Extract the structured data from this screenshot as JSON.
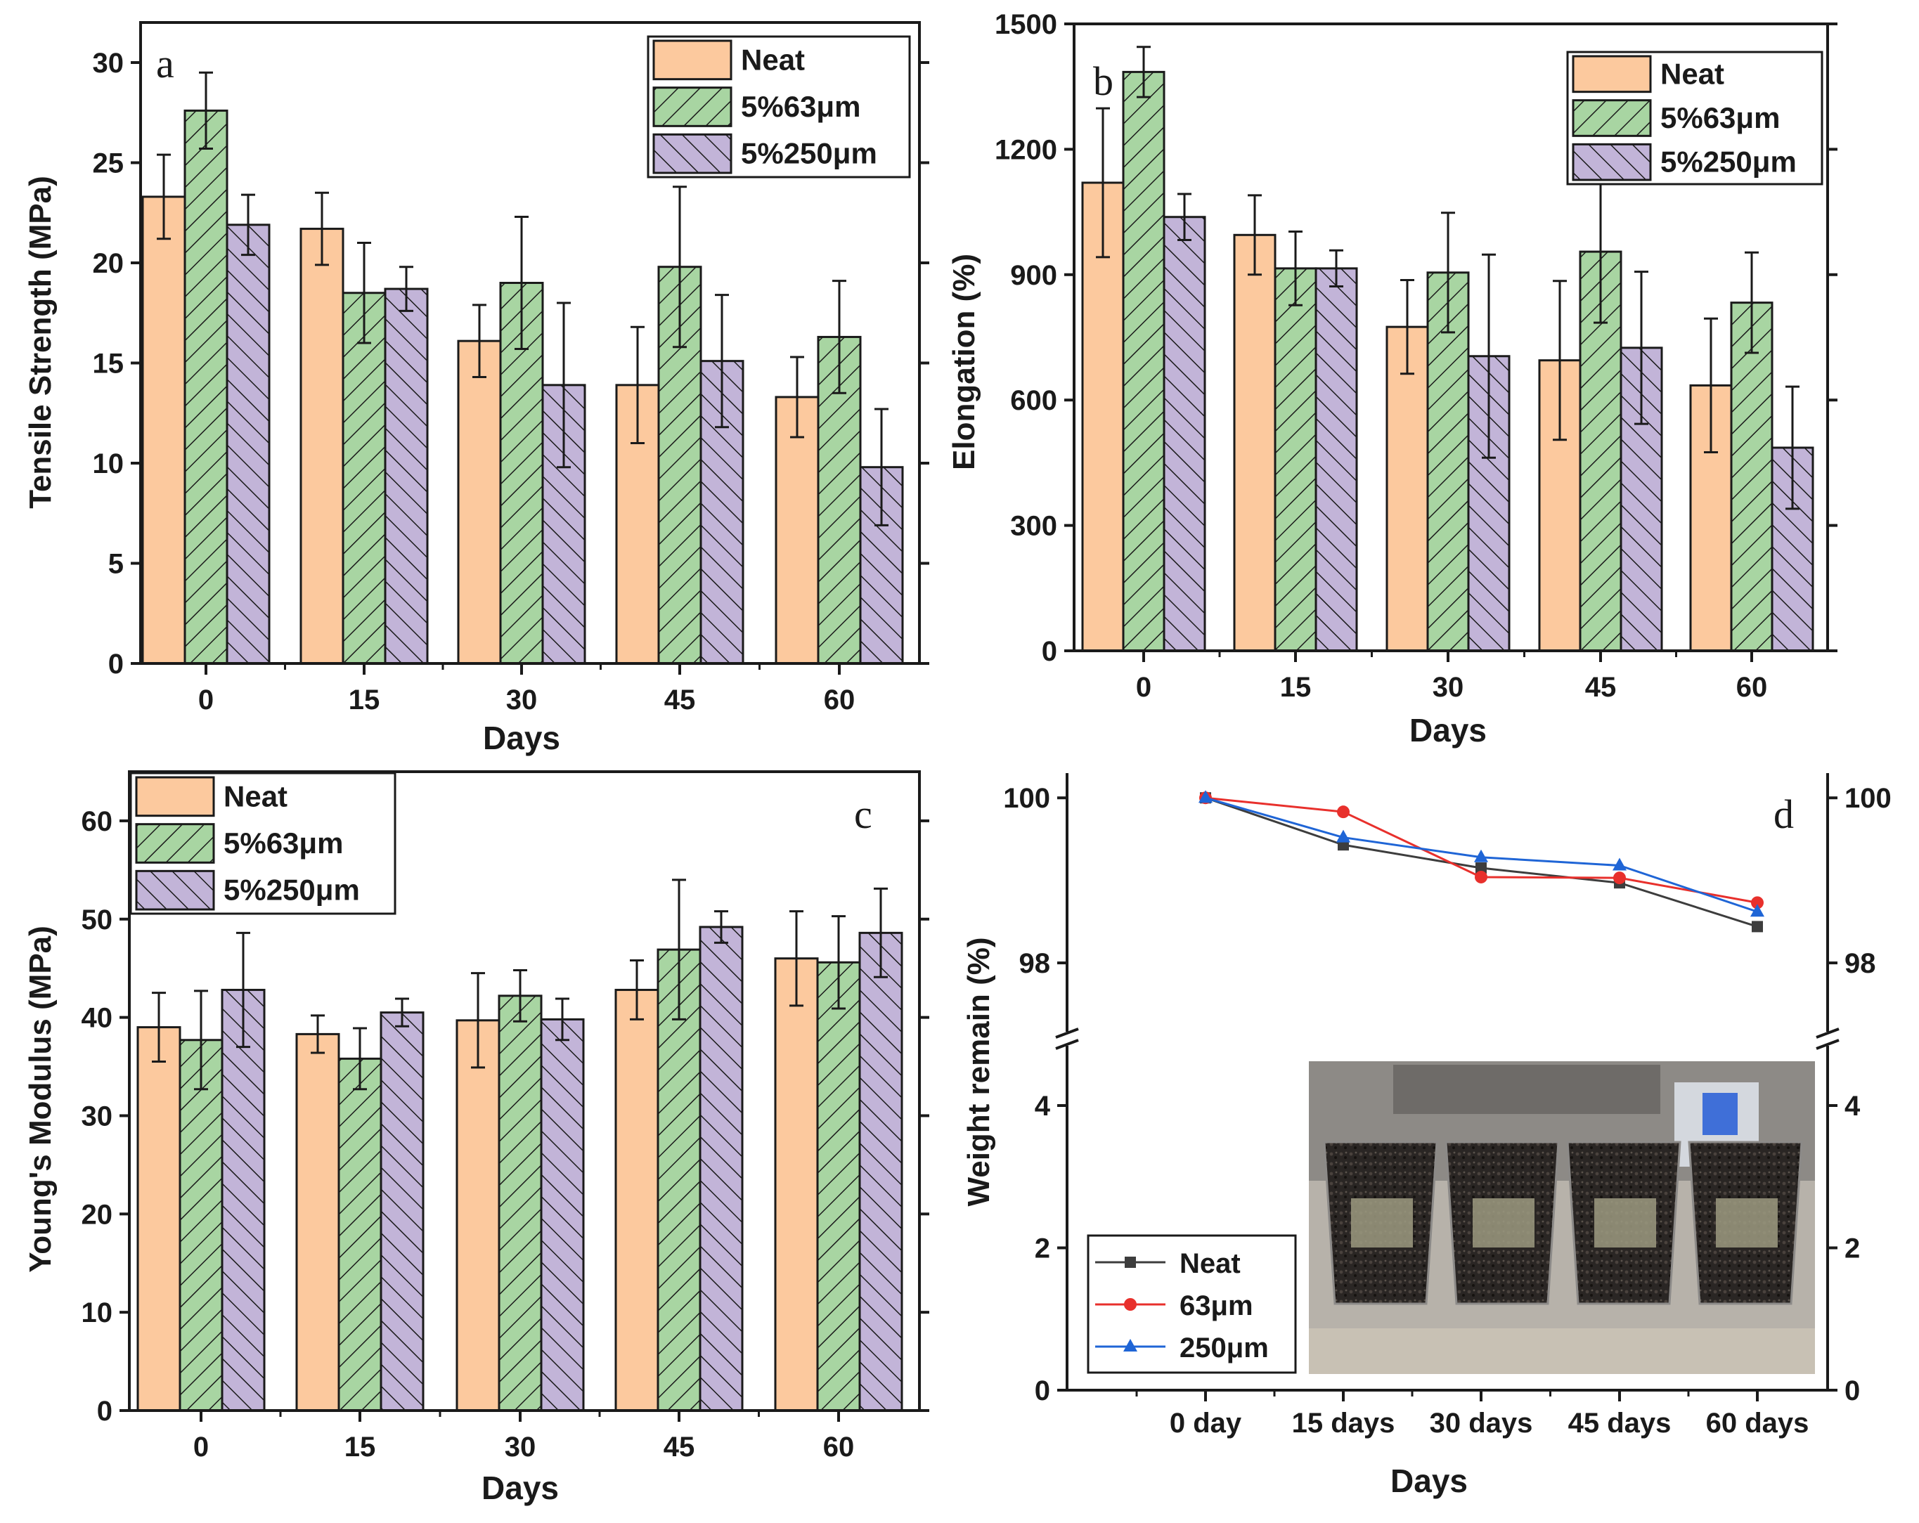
{
  "colors": {
    "neat": "#fcc99e",
    "g63": "#a8d5a2",
    "g250": "#c2b4d8",
    "axis": "#1a1a1a",
    "line_neat": "#3d3d3d",
    "line_63": "#e8302c",
    "line_250": "#1f65d6"
  },
  "chart_data": [
    {
      "id": "a",
      "type": "bar",
      "panel_label": "a",
      "xlabel": "Days",
      "ylabel": "Tensile Strength (MPa)",
      "ylim": [
        0,
        32
      ],
      "yticks": [
        0,
        5,
        10,
        15,
        20,
        25,
        30
      ],
      "categories": [
        "0",
        "15",
        "30",
        "45",
        "60"
      ],
      "legend_position": "top-right",
      "series": [
        {
          "name": "Neat",
          "values": [
            23.3,
            21.7,
            16.1,
            13.9,
            13.3
          ],
          "errors": [
            2.1,
            1.8,
            1.8,
            2.9,
            2.0
          ]
        },
        {
          "name": "5%63μm",
          "values": [
            27.6,
            18.5,
            19.0,
            19.8,
            16.3
          ],
          "errors": [
            1.9,
            2.5,
            3.3,
            4.0,
            2.8
          ]
        },
        {
          "name": "5%250μm",
          "values": [
            21.9,
            18.7,
            13.9,
            15.1,
            9.8
          ],
          "errors": [
            1.5,
            1.1,
            4.1,
            3.3,
            2.9
          ]
        }
      ]
    },
    {
      "id": "b",
      "type": "bar",
      "panel_label": "b",
      "xlabel": "Days",
      "ylabel": "Elongation (%)",
      "ylim": [
        0,
        1500
      ],
      "yticks": [
        0,
        300,
        600,
        900,
        1200,
        1500
      ],
      "categories": [
        "0",
        "15",
        "30",
        "45",
        "60"
      ],
      "legend_position": "top-right",
      "series": [
        {
          "name": "Neat",
          "values": [
            1120,
            995,
            775,
            695,
            635
          ],
          "errors": [
            178,
            95,
            112,
            190,
            160
          ]
        },
        {
          "name": "5%63μm",
          "values": [
            1385,
            915,
            905,
            955,
            833
          ],
          "errors": [
            60,
            88,
            143,
            170,
            120
          ]
        },
        {
          "name": "5%250μm",
          "values": [
            1038,
            915,
            705,
            725,
            486
          ],
          "errors": [
            55,
            43,
            243,
            182,
            146
          ]
        }
      ]
    },
    {
      "id": "c",
      "type": "bar",
      "panel_label": "c",
      "xlabel": "Days",
      "ylabel": "Young's Modulus (MPa)",
      "ylim": [
        0,
        65
      ],
      "yticks": [
        0,
        10,
        20,
        30,
        40,
        50,
        60
      ],
      "categories": [
        "0",
        "15",
        "30",
        "45",
        "60"
      ],
      "legend_position": "top-left",
      "series": [
        {
          "name": "Neat",
          "values": [
            39.0,
            38.3,
            39.7,
            42.8,
            46.0
          ],
          "errors": [
            3.5,
            1.9,
            4.8,
            3.0,
            4.8
          ]
        },
        {
          "name": "5%63μm",
          "values": [
            37.7,
            35.8,
            42.2,
            46.9,
            45.6
          ],
          "errors": [
            5.0,
            3.1,
            2.6,
            7.1,
            4.7
          ]
        },
        {
          "name": "5%250μm",
          "values": [
            42.8,
            40.5,
            39.8,
            49.2,
            48.6
          ],
          "errors": [
            5.8,
            1.4,
            2.1,
            1.6,
            4.5
          ]
        }
      ]
    },
    {
      "id": "d",
      "type": "line",
      "panel_label": "d",
      "xlabel": "Days",
      "ylabel": "Weight remain (%)",
      "categories": [
        "0 day",
        "15 days",
        "30 days",
        "45 days",
        "60 days"
      ],
      "y_lower_ticks": [
        0,
        2,
        4
      ],
      "y_upper_ticks": [
        98,
        100
      ],
      "y_lower_range": [
        0,
        4.8
      ],
      "y_upper_range": [
        97.2,
        100.3
      ],
      "legend_position": "bottom-left",
      "series": [
        {
          "name": "Neat",
          "marker": "square",
          "values": [
            100.0,
            99.43,
            99.15,
            98.97,
            98.44
          ]
        },
        {
          "name": "63μm",
          "marker": "circle",
          "values": [
            100.0,
            99.83,
            99.04,
            99.03,
            98.73
          ]
        },
        {
          "name": "250μm",
          "marker": "triangle",
          "values": [
            100.0,
            99.52,
            99.28,
            99.18,
            98.62
          ]
        }
      ]
    }
  ]
}
